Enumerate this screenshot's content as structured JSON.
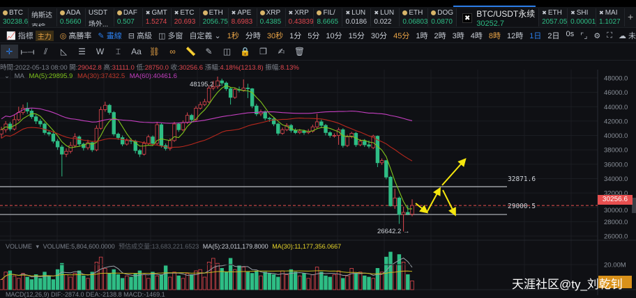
{
  "tickers": [
    {
      "name": "BTC",
      "value": "30238.6",
      "color": "g",
      "icon": "coin"
    },
    {
      "name": "纳斯达",
      "value": "克綜...",
      "color": "w",
      "icon": ""
    },
    {
      "name": "ADA",
      "value": "0.5660",
      "color": "g",
      "icon": "coin"
    },
    {
      "name": "USDT",
      "value": "场外...",
      "color": "w",
      "icon": ""
    },
    {
      "name": "DAF",
      "value": "0.507",
      "color": "g",
      "icon": "coin"
    },
    {
      "name": "GMT",
      "value": "1.5274",
      "color": "r",
      "icon": "x"
    },
    {
      "name": "ETC",
      "value": "20.693",
      "color": "r",
      "icon": "x"
    },
    {
      "name": "ETH",
      "value": "2056.75",
      "color": "g",
      "icon": "coin"
    },
    {
      "name": "APE",
      "value": "8.6983",
      "color": "r",
      "icon": "x"
    },
    {
      "name": "XRP",
      "value": "0.4385",
      "color": "g",
      "icon": "coin"
    },
    {
      "name": "XRP",
      "value": "0.43839",
      "color": "r",
      "icon": "x"
    },
    {
      "name": "FIL/",
      "value": "8.6665",
      "color": "g",
      "icon": "coin"
    },
    {
      "name": "LUN",
      "value": "0.0186",
      "color": "w",
      "icon": "x"
    },
    {
      "name": "LUN",
      "value": "0.022",
      "color": "w",
      "icon": "x"
    },
    {
      "name": "ETH",
      "value": "0.06803",
      "color": "g",
      "icon": "coin"
    },
    {
      "name": "DOG",
      "value": "0.0870",
      "color": "g",
      "icon": "coin"
    }
  ],
  "active_ticker": {
    "name": "BTC/USDT永续",
    "value": "30252.7"
  },
  "tickers_after": [
    {
      "name": "ETH",
      "value": "2057.05",
      "color": "g",
      "icon": "x"
    },
    {
      "name": "SHI",
      "value": "0.00001",
      "color": "g",
      "icon": "x"
    },
    {
      "name": "MAI",
      "value": "1.1027",
      "color": "g",
      "icon": "x"
    }
  ],
  "toolbar": {
    "indicators": "指標",
    "main_badge": "主力",
    "high_win": "高勝率",
    "draw": "畫線",
    "advanced": "高級",
    "multi_window": "多窗",
    "custom": "自定義",
    "intervals": [
      {
        "l": "1秒",
        "c": "o"
      },
      {
        "l": "分時",
        "c": "w"
      },
      {
        "l": "30秒",
        "c": "o"
      },
      {
        "l": "1分",
        "c": "w"
      },
      {
        "l": "5分",
        "c": "w"
      },
      {
        "l": "10分",
        "c": "w"
      },
      {
        "l": "15分",
        "c": "w"
      },
      {
        "l": "30分",
        "c": "w"
      },
      {
        "l": "45分",
        "c": "o"
      },
      {
        "l": "1時",
        "c": "w"
      },
      {
        "l": "2時",
        "c": "w"
      },
      {
        "l": "3時",
        "c": "w"
      },
      {
        "l": "4時",
        "c": "w"
      },
      {
        "l": "8時",
        "c": "o"
      },
      {
        "l": "12時",
        "c": "w"
      },
      {
        "l": "1日",
        "c": "b"
      },
      {
        "l": "2日",
        "c": "w"
      },
      {
        "l": "0s",
        "c": "w"
      }
    ],
    "layout_name": "未命名"
  },
  "draw_tools": [
    {
      "name": "crosshair",
      "glyph": "✛"
    },
    {
      "name": "segment",
      "glyph": "⟝⟞"
    },
    {
      "name": "parallel-channel",
      "glyph": "⫽"
    },
    {
      "name": "triangle",
      "glyph": "◺"
    },
    {
      "name": "horizontal-lines",
      "glyph": "☰"
    },
    {
      "name": "wave",
      "glyph": "W"
    },
    {
      "name": "price-range",
      "glyph": "⌶"
    },
    {
      "name": "text",
      "glyph": "Aa"
    },
    {
      "name": "magnet",
      "glyph": "⛓"
    },
    {
      "name": "link",
      "glyph": "∞"
    },
    {
      "name": "ruler",
      "glyph": "📏"
    },
    {
      "name": "pen",
      "glyph": "✎"
    },
    {
      "name": "eye",
      "glyph": "◫"
    },
    {
      "name": "lock",
      "glyph": "🔒"
    },
    {
      "name": "copy",
      "glyph": "❐"
    },
    {
      "name": "note",
      "glyph": "✍"
    },
    {
      "name": "trash",
      "glyph": "🗑"
    }
  ],
  "info": {
    "time_label": "時間:",
    "time": "2022-05-13 08:00",
    "open_label": "開:",
    "open": "29042.8",
    "high_label": "高:",
    "high": "31111.0",
    "low_label": "低:",
    "low": "28750.0",
    "close_label": "收:",
    "close": "30256.6",
    "change_label": "漲幅:",
    "change": "4.18%(1213.8)",
    "amp_label": "振幅:",
    "amp": "8.13%"
  },
  "ma_legend": {
    "title": "MA",
    "ma5": "MA(5):29895.9",
    "ma30": "MA(30):37432.5",
    "ma60": "MA(60):40461.6"
  },
  "annotations": {
    "high": "48195.2 →",
    "low": "26642.2 →",
    "line1": "32871.6",
    "line2": "29000.5",
    "current_price": "30256.6"
  },
  "volume_legend": {
    "title": "VOLUME",
    "volume": "VOLUME:5,804,600.0000",
    "est": "预估成交量:13,683,221.6523",
    "ma5": "MA(5):23,011,179.8000",
    "ma30": "MA(30):11,177,356.0667"
  },
  "macd_legend": "MACD(12,26,9)   DIF:-2874.0   DEA:-2138.8   MACD:-1469.1",
  "volume_axis_label": "20.00M",
  "watermark": "天涯社区@ty_刘乾钊",
  "colors": {
    "up": "#e0474e",
    "down": "#2ebd85",
    "ma5": "#7fc31c",
    "ma30": "#b8281d",
    "ma60": "#c43fc0",
    "annotation": "#f5e60e",
    "accent": "#2b7de9"
  },
  "chart_data": {
    "type": "candlestick",
    "price_axis": {
      "ylim": [
        26000,
        48000
      ],
      "ticks": [
        "48000.0",
        "46000.0",
        "44000.0",
        "42000.0",
        "40000.0",
        "38000.0",
        "36000.0",
        "34000.0",
        "32000.0",
        "30000.0",
        "28000.0",
        "26000.0"
      ]
    },
    "horizontal_lines": [
      32871.6,
      29000.5
    ],
    "current_price": 30256.6,
    "candles_ohlc": [
      [
        40200,
        41200,
        39600,
        40800
      ],
      [
        40800,
        42000,
        40400,
        41600
      ],
      [
        41600,
        41900,
        40600,
        40900
      ],
      [
        40900,
        42900,
        40700,
        42200
      ],
      [
        42200,
        44000,
        42000,
        43200
      ],
      [
        43200,
        44300,
        42900,
        43800
      ],
      [
        43800,
        44600,
        43000,
        43400
      ],
      [
        43400,
        43700,
        42300,
        42600
      ],
      [
        42600,
        42900,
        41600,
        42000
      ],
      [
        42000,
        42300,
        41200,
        41600
      ],
      [
        41600,
        41800,
        40100,
        40400
      ],
      [
        40400,
        40700,
        39900,
        40200
      ],
      [
        40200,
        40500,
        38900,
        39200
      ],
      [
        39200,
        39500,
        38000,
        38400
      ],
      [
        38400,
        38700,
        34300,
        37400
      ],
      [
        37400,
        38200,
        37000,
        37800
      ],
      [
        37800,
        39100,
        37500,
        38600
      ],
      [
        38600,
        40300,
        38300,
        39800
      ],
      [
        39800,
        40000,
        38500,
        38800
      ],
      [
        38800,
        39000,
        37900,
        38300
      ],
      [
        38300,
        39400,
        38000,
        39000
      ],
      [
        39000,
        39200,
        37700,
        38000
      ],
      [
        38000,
        41400,
        37800,
        41000
      ],
      [
        41000,
        44000,
        40800,
        43600
      ],
      [
        43600,
        44700,
        43300,
        44200
      ],
      [
        44200,
        44400,
        42900,
        43200
      ],
      [
        43200,
        43400,
        39900,
        40200
      ],
      [
        40200,
        40400,
        39400,
        39700
      ],
      [
        39700,
        40000,
        38500,
        38800
      ],
      [
        38800,
        39600,
        38600,
        39300
      ],
      [
        39300,
        39600,
        38800,
        39200
      ],
      [
        39200,
        39400,
        37500,
        37900
      ],
      [
        37900,
        38100,
        37000,
        37400
      ],
      [
        37400,
        39200,
        37200,
        38900
      ],
      [
        38900,
        40100,
        38700,
        39800
      ],
      [
        39800,
        40000,
        38600,
        38900
      ],
      [
        38900,
        41900,
        38700,
        41500
      ],
      [
        41500,
        41700,
        38300,
        38600
      ],
      [
        38600,
        38900,
        37900,
        38200
      ],
      [
        38200,
        39600,
        37900,
        39300
      ],
      [
        39300,
        41900,
        39100,
        41600
      ],
      [
        41600,
        41800,
        40500,
        40800
      ],
      [
        40800,
        42100,
        40600,
        41800
      ],
      [
        41800,
        43200,
        41600,
        42800
      ],
      [
        42800,
        43000,
        41900,
        42200
      ],
      [
        42200,
        44100,
        42000,
        43800
      ],
      [
        43800,
        44700,
        43600,
        44300
      ],
      [
        44300,
        45100,
        44100,
        44700
      ],
      [
        44700,
        47000,
        44500,
        46600
      ],
      [
        46600,
        47600,
        46300,
        46800
      ],
      [
        46800,
        48195.2,
        46500,
        47600
      ],
      [
        47600,
        47900,
        46900,
        47300
      ],
      [
        47300,
        47500,
        46200,
        46500
      ],
      [
        46500,
        46700,
        44300,
        45300
      ],
      [
        45300,
        46700,
        45100,
        46400
      ],
      [
        46400,
        46800,
        46000,
        46300
      ],
      [
        46300,
        47800,
        46100,
        46600
      ],
      [
        46600,
        47200,
        45200,
        46500
      ],
      [
        46500,
        46600,
        43800,
        44100
      ],
      [
        44100,
        44400,
        42700,
        43000
      ],
      [
        43000,
        43600,
        42700,
        43300
      ],
      [
        43300,
        43500,
        42100,
        42400
      ],
      [
        42400,
        42600,
        41900,
        42300
      ],
      [
        42300,
        42500,
        41300,
        41600
      ],
      [
        41600,
        41800,
        40000,
        40300
      ],
      [
        40300,
        41100,
        40100,
        40800
      ],
      [
        40800,
        41700,
        40600,
        41400
      ],
      [
        41400,
        41600,
        40400,
        40700
      ],
      [
        40700,
        41000,
        40200,
        40400
      ],
      [
        40400,
        40900,
        40200,
        40600
      ],
      [
        40600,
        40800,
        40100,
        40400
      ],
      [
        40400,
        40900,
        40200,
        40600
      ],
      [
        40600,
        41500,
        40400,
        41200
      ],
      [
        41200,
        43000,
        41000,
        41900
      ],
      [
        41900,
        42200,
        41100,
        41400
      ],
      [
        41400,
        41600,
        40000,
        40400
      ],
      [
        40400,
        40600,
        39700,
        40000
      ],
      [
        40000,
        40300,
        39700,
        40000
      ],
      [
        40000,
        41100,
        38700,
        40800
      ],
      [
        40800,
        41000,
        38300,
        38600
      ],
      [
        38600,
        40100,
        38400,
        39800
      ],
      [
        39800,
        40500,
        39600,
        40300
      ],
      [
        40300,
        40500,
        38400,
        38700
      ],
      [
        38700,
        39500,
        38500,
        39200
      ],
      [
        39200,
        39500,
        38400,
        38700
      ],
      [
        38700,
        39300,
        38200,
        38500
      ],
      [
        38300,
        40100,
        38100,
        39900
      ],
      [
        39900,
        40000,
        35600,
        36200
      ],
      [
        36200,
        36800,
        35900,
        36500
      ],
      [
        36500,
        36600,
        33900,
        34200
      ],
      [
        34200,
        34400,
        30100,
        30200
      ],
      [
        30200,
        32600,
        29800,
        31300
      ],
      [
        31300,
        31500,
        27700,
        29000
      ],
      [
        29000,
        30100,
        26642.2,
        29300
      ],
      [
        29300,
        30300,
        28900,
        29100
      ],
      [
        29042.8,
        31111.0,
        28750.0,
        30256.6
      ]
    ],
    "volume_millions": [
      8,
      14,
      15,
      11,
      9,
      13,
      10,
      8,
      12,
      9,
      14,
      11,
      8,
      16,
      21,
      12,
      10,
      13,
      15,
      11,
      9,
      14,
      22,
      26,
      17,
      13,
      16,
      12,
      9,
      11,
      10,
      13,
      15,
      12,
      9,
      14,
      11,
      12,
      19,
      10,
      14,
      11,
      9,
      13,
      12,
      15,
      16,
      10,
      22,
      25,
      21,
      17,
      14,
      25,
      16,
      19,
      18,
      14,
      13,
      15,
      11,
      14,
      13,
      12,
      10,
      15,
      12,
      16,
      14,
      11,
      13,
      9,
      12,
      18,
      14,
      11,
      10,
      12,
      15,
      9,
      11,
      17,
      13,
      14,
      11,
      10,
      9,
      17,
      14,
      26,
      30,
      20,
      28,
      22,
      12,
      7
    ],
    "volume_axis": {
      "label": "20.00M"
    }
  }
}
